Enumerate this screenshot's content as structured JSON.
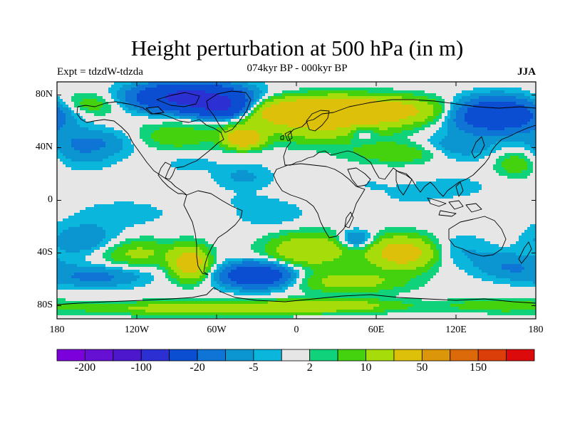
{
  "title": "Height perturbation at 500 hPa (in m)",
  "subtitle": "074kyr BP - 000kyr BP",
  "left_label": "Expt = tdzdW-tdzda",
  "right_label": "JJA",
  "chart_data": {
    "type": "heatmap",
    "projection": "cylindrical-equidistant",
    "xlim": [
      -180,
      180
    ],
    "ylim": [
      -90,
      90
    ],
    "lat_ticks": [
      {
        "value": 80,
        "label": "80N"
      },
      {
        "value": 40,
        "label": "40N"
      },
      {
        "value": 0,
        "label": "0"
      },
      {
        "value": -40,
        "label": "40S"
      },
      {
        "value": -80,
        "label": "80S"
      }
    ],
    "lon_ticks": [
      {
        "value": -180,
        "label": "180"
      },
      {
        "value": -120,
        "label": "120W"
      },
      {
        "value": -60,
        "label": "60W"
      },
      {
        "value": 0,
        "label": "0"
      },
      {
        "value": 60,
        "label": "60E"
      },
      {
        "value": 120,
        "label": "120E"
      },
      {
        "value": 180,
        "label": "180"
      }
    ],
    "colorbar": {
      "colors": [
        "#7b00dc",
        "#6510d2",
        "#4d17ce",
        "#2c2fd2",
        "#0b4ed2",
        "#0e74d6",
        "#0b96d2",
        "#0ab6dc",
        "#e6e6e6",
        "#10d27a",
        "#44d20e",
        "#a6dc0a",
        "#dcc00a",
        "#dc960a",
        "#dc6a0a",
        "#dc3e0a",
        "#dc0a0a"
      ],
      "labels": [
        {
          "boundary": 1,
          "text": "-200"
        },
        {
          "boundary": 3,
          "text": "-100"
        },
        {
          "boundary": 5,
          "text": "-20"
        },
        {
          "boundary": 7,
          "text": "-5"
        },
        {
          "boundary": 9,
          "text": "2"
        },
        {
          "boundary": 11,
          "text": "10"
        },
        {
          "boundary": 13,
          "text": "50"
        },
        {
          "boundary": 15,
          "text": "150"
        }
      ]
    },
    "anomalies": [
      {
        "lon": -80,
        "lat": 78,
        "value": -65,
        "rlon": 38,
        "rlat": 10
      },
      {
        "lon": -55,
        "lat": 70,
        "value": -45,
        "rlon": 20,
        "rlat": 8
      },
      {
        "lon": -40,
        "lat": 47,
        "value": 38,
        "rlon": 13,
        "rlat": 7
      },
      {
        "lon": -155,
        "lat": 73,
        "value": 9,
        "rlon": 25,
        "rlat": 9
      },
      {
        "lon": -150,
        "lat": 45,
        "value": -9,
        "rlon": 38,
        "rlat": 10
      },
      {
        "lon": -160,
        "lat": 35,
        "value": -6,
        "rlon": 25,
        "rlat": 12
      },
      {
        "lon": -95,
        "lat": 48,
        "value": 9,
        "rlon": 35,
        "rlat": 10
      },
      {
        "lon": -80,
        "lat": 28,
        "value": -4,
        "rlon": 18,
        "rlat": 6
      },
      {
        "lon": -40,
        "lat": 18,
        "value": -6,
        "rlon": 22,
        "rlat": 10
      },
      {
        "lon": 30,
        "lat": 68,
        "value": 45,
        "rlon": 70,
        "rlat": 10
      },
      {
        "lon": 18,
        "lat": 55,
        "value": 14,
        "rlon": 50,
        "rlat": 12
      },
      {
        "lon": 50,
        "lat": 52,
        "value": -10,
        "rlon": 10,
        "rlat": 7
      },
      {
        "lon": 80,
        "lat": 36,
        "value": 10,
        "rlon": 38,
        "rlat": 8
      },
      {
        "lon": 150,
        "lat": 65,
        "value": -45,
        "rlon": 32,
        "rlat": 12
      },
      {
        "lon": 120,
        "lat": 40,
        "value": -10,
        "rlon": 28,
        "rlat": 10
      },
      {
        "lon": 165,
        "lat": 28,
        "value": 9,
        "rlon": 15,
        "rlat": 10
      },
      {
        "lon": 120,
        "lat": 10,
        "value": -3,
        "rlon": 30,
        "rlat": 10
      },
      {
        "lon": 85,
        "lat": 5,
        "value": -3,
        "rlon": 22,
        "rlat": 8
      },
      {
        "lon": 55,
        "lat": 12,
        "value": -2,
        "rlon": 15,
        "rlat": 6
      },
      {
        "lon": -40,
        "lat": 0,
        "value": -1.5,
        "rlon": 22,
        "rlat": 6
      },
      {
        "lon": -130,
        "lat": -10,
        "value": -4,
        "rlon": 35,
        "rlat": 10
      },
      {
        "lon": -160,
        "lat": -30,
        "value": -10,
        "rlon": 25,
        "rlat": 12
      },
      {
        "lon": -120,
        "lat": -40,
        "value": 12,
        "rlon": 28,
        "rlat": 10
      },
      {
        "lon": -150,
        "lat": -58,
        "value": -12,
        "rlon": 35,
        "rlat": 8
      },
      {
        "lon": -80,
        "lat": -48,
        "value": 30,
        "rlon": 14,
        "rlat": 12
      },
      {
        "lon": -30,
        "lat": -57,
        "value": -40,
        "rlon": 25,
        "rlat": 9
      },
      {
        "lon": -75,
        "lat": -82,
        "value": 15,
        "rlon": 80,
        "rlat": 5
      },
      {
        "lon": 10,
        "lat": -38,
        "value": 20,
        "rlon": 30,
        "rlat": 12
      },
      {
        "lon": 45,
        "lat": -30,
        "value": -15,
        "rlon": 12,
        "rlat": 7
      },
      {
        "lon": 80,
        "lat": -40,
        "value": 30,
        "rlon": 25,
        "rlat": 12
      },
      {
        "lon": 40,
        "lat": -62,
        "value": 14,
        "rlon": 40,
        "rlat": 8
      },
      {
        "lon": 25,
        "lat": -80,
        "value": 15,
        "rlon": 55,
        "rlat": 5
      },
      {
        "lon": 120,
        "lat": -38,
        "value": -6,
        "rlon": 25,
        "rlat": 12
      },
      {
        "lon": 160,
        "lat": -50,
        "value": -10,
        "rlon": 25,
        "rlat": 10
      },
      {
        "lon": 150,
        "lat": -80,
        "value": 8,
        "rlon": 40,
        "rlat": 5
      },
      {
        "lon": -20,
        "lat": -10,
        "value": -5,
        "rlon": 25,
        "rlat": 10
      }
    ]
  }
}
